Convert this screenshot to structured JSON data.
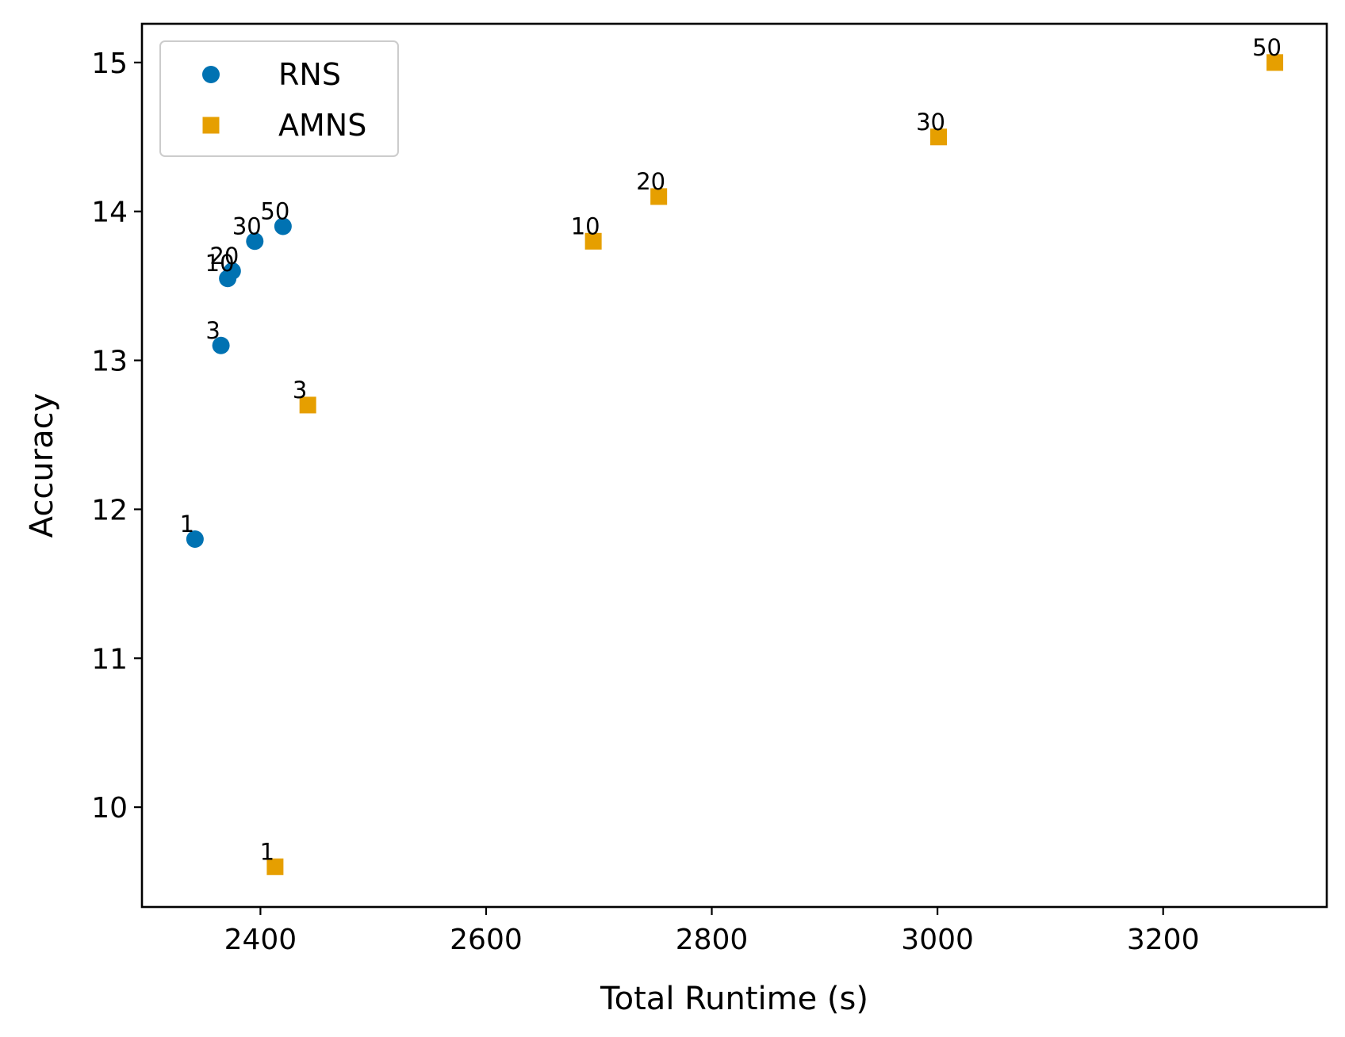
{
  "chart_data": {
    "type": "scatter",
    "title": "",
    "xlabel": "Total Runtime (s)",
    "ylabel": "Accuracy",
    "xlim": [
      2295,
      3345
    ],
    "ylim": [
      9.33,
      15.26
    ],
    "xticks": [
      2400,
      2600,
      2800,
      3000,
      3200
    ],
    "yticks": [
      10,
      11,
      12,
      13,
      14,
      15
    ],
    "grid": false,
    "legend_position": "top-left",
    "series": [
      {
        "name": "RNS",
        "marker": "circle",
        "color": "#0072b2",
        "points": [
          {
            "x": 2342,
            "y": 11.8,
            "label": "1"
          },
          {
            "x": 2365,
            "y": 13.1,
            "label": "3"
          },
          {
            "x": 2371,
            "y": 13.55,
            "label": "10"
          },
          {
            "x": 2375,
            "y": 13.6,
            "label": "20"
          },
          {
            "x": 2395,
            "y": 13.8,
            "label": "30"
          },
          {
            "x": 2420,
            "y": 13.9,
            "label": "50"
          }
        ]
      },
      {
        "name": "AMNS",
        "marker": "square",
        "color": "#e69f00",
        "points": [
          {
            "x": 2413,
            "y": 9.6,
            "label": "1"
          },
          {
            "x": 2442,
            "y": 12.7,
            "label": "3"
          },
          {
            "x": 2695,
            "y": 13.8,
            "label": "10"
          },
          {
            "x": 2753,
            "y": 14.1,
            "label": "20"
          },
          {
            "x": 3001,
            "y": 14.5,
            "label": "30"
          },
          {
            "x": 3299,
            "y": 15.0,
            "label": "50"
          }
        ]
      }
    ]
  }
}
